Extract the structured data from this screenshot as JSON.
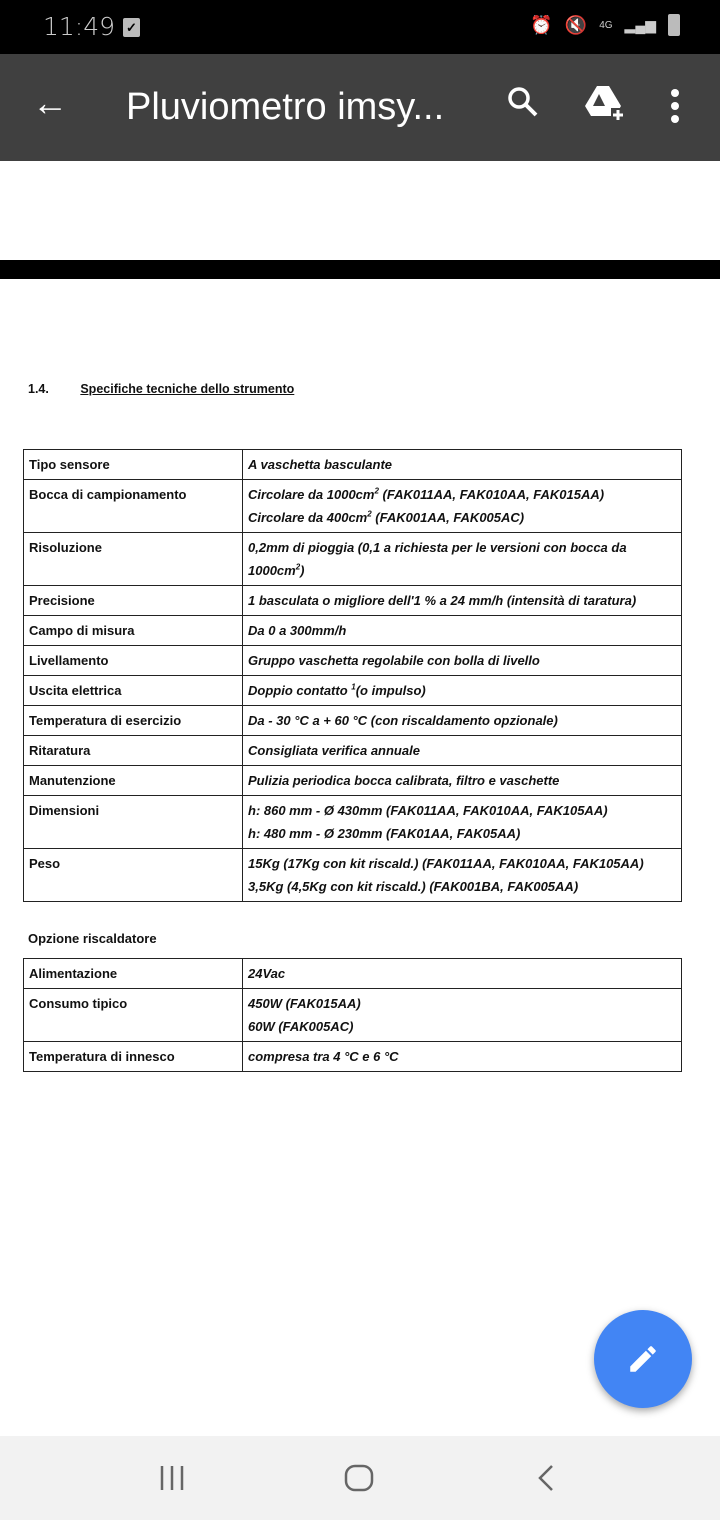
{
  "status_bar": {
    "time": "11:49",
    "network": "4G"
  },
  "app_bar": {
    "title": "Pluviometro imsy...",
    "icons": [
      "back-arrow-icon",
      "search-icon",
      "drive-add-icon",
      "more-vert-icon"
    ]
  },
  "document": {
    "section_number": "1.4.",
    "section_title": "Specifiche tecniche dello strumento",
    "specs": [
      {
        "key": "Tipo sensore",
        "lines": [
          [
            {
              "t": "A vaschetta basculante"
            }
          ]
        ]
      },
      {
        "key": "Bocca di campionamento",
        "lines": [
          [
            {
              "t": "Circolare da  1000cm"
            },
            {
              "sup": "2"
            },
            {
              "t": " (FAK011AA, FAK010AA, FAK015AA)"
            }
          ],
          [
            {
              "t": "Circolare da  400cm"
            },
            {
              "sup": "2"
            },
            {
              "t": " (FAK001AA, FAK005AC)"
            }
          ]
        ]
      },
      {
        "key": "Risoluzione",
        "lines": [
          [
            {
              "t": "0,2mm di pioggia (0,1 a richiesta per le versioni con bocca da 1000cm"
            },
            {
              "sup": "2"
            },
            {
              "t": ")"
            }
          ]
        ]
      },
      {
        "key": "Precisione",
        "lines": [
          [
            {
              "t": "1 basculata o migliore dell'1 % a 24 mm/h  (intensità di taratura)"
            }
          ]
        ]
      },
      {
        "key": "Campo di misura",
        "lines": [
          [
            {
              "t": "Da 0 a 300mm/h"
            }
          ]
        ]
      },
      {
        "key": "Livellamento",
        "lines": [
          [
            {
              "t": "Gruppo vaschetta regolabile con bolla di livello"
            }
          ]
        ]
      },
      {
        "key": "Uscita elettrica",
        "lines": [
          [
            {
              "t": "Doppio contatto "
            },
            {
              "sup": "1"
            },
            {
              "t": "(o impulso)"
            }
          ]
        ]
      },
      {
        "key": "Temperatura di esercizio",
        "lines": [
          [
            {
              "t": "Da - 30 °C  a + 60 °C (con riscaldamento opzionale)"
            }
          ]
        ]
      },
      {
        "key": "Ritaratura",
        "lines": [
          [
            {
              "t": "Consigliata verifica  annuale"
            }
          ]
        ]
      },
      {
        "key": "Manutenzione",
        "lines": [
          [
            {
              "t": "Pulizia periodica bocca calibrata, filtro e vaschette"
            }
          ]
        ]
      },
      {
        "key": "Dimensioni",
        "lines": [
          [
            {
              "t": " h: 860 mm - Ø 430mm (FAK011AA, FAK010AA, FAK105AA)"
            }
          ],
          [
            {
              "t": " h: 480 mm - Ø 230mm (FAK01AA, FAK05AA)"
            }
          ]
        ]
      },
      {
        "key": "Peso",
        "lines": [
          [
            {
              "t": "15Kg (17Kg con kit riscald.) (FAK011AA, FAK010AA, FAK105AA)"
            }
          ],
          [
            {
              "t": "3,5Kg (4,5Kg con kit riscald.) (FAK001BA, FAK005AA)"
            }
          ]
        ]
      }
    ],
    "heater_title": "Opzione riscaldatore",
    "heater": [
      {
        "key": "Alimentazione",
        "lines": [
          [
            {
              "t": "24Vac"
            }
          ]
        ]
      },
      {
        "key": "Consumo tipico",
        "lines": [
          [
            {
              "t": "450W (FAK015AA)"
            }
          ],
          [
            {
              "t": "60W (FAK005AC)"
            }
          ]
        ]
      },
      {
        "key": "Temperatura di innesco",
        "lines": [
          [
            {
              "t": "compresa tra 4 °C e 6 °C"
            }
          ]
        ]
      }
    ]
  },
  "fab": {
    "icon": "edit-pencil-icon",
    "color": "#4285f4"
  },
  "nav_bar": {
    "icons": [
      "recent-apps-icon",
      "home-icon",
      "back-icon"
    ]
  }
}
